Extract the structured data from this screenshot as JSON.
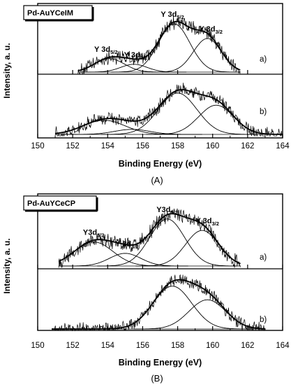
{
  "chart_data": [
    {
      "type": "line",
      "panel_caption": "(A)",
      "sample_label": "Pd-AuYCeIM",
      "xlabel": "Binding Energy (eV)",
      "ylabel": "Intensity, a. u.",
      "xlim": [
        150,
        164
      ],
      "x_ticks": [
        "150",
        "152",
        "154",
        "156",
        "158",
        "160",
        "162",
        "164"
      ],
      "x_tick_values": [
        150,
        152,
        154,
        156,
        158,
        160,
        162,
        164
      ],
      "subplots": [
        {
          "label": "a)",
          "x_range": [
            152.3,
            161.6
          ],
          "peaks": [
            {
              "name_main": "Y 3d",
              "name_sub": "5/2",
              "center": 154.1,
              "height": 0.24,
              "sigma": 0.85,
              "label_x": 153.9
            },
            {
              "name_main": "Y 3d",
              "name_sub": "3/2",
              "center": 155.5,
              "height": 0.14,
              "sigma": 0.75,
              "label_x": 155.6
            },
            {
              "name_main": "Y 3d",
              "name_sub": "5/2",
              "center": 157.8,
              "height": 0.86,
              "sigma": 0.9,
              "label_x": 157.7
            },
            {
              "name_main": "Y 3d",
              "name_sub": "3/2",
              "center": 159.7,
              "height": 0.6,
              "sigma": 0.8,
              "label_x": 159.9
            }
          ]
        },
        {
          "label": "b)",
          "x_range": [
            151.0,
            164.0
          ],
          "peaks": [
            {
              "center": 153.8,
              "height": 0.28,
              "sigma": 1.2
            },
            {
              "center": 155.4,
              "height": 0.1,
              "sigma": 1.0
            },
            {
              "center": 158.0,
              "height": 0.82,
              "sigma": 1.1
            },
            {
              "center": 160.2,
              "height": 0.58,
              "sigma": 1.0
            }
          ]
        }
      ]
    },
    {
      "type": "line",
      "panel_caption": "(B)",
      "sample_label": "Pd-AuYCeCP",
      "xlabel": "Binding Energy (eV)",
      "ylabel": "Intensity, a. u.",
      "xlim": [
        150,
        164
      ],
      "x_ticks": [
        "150",
        "152",
        "154",
        "156",
        "158",
        "160",
        "162",
        "164"
      ],
      "x_tick_values": [
        150,
        152,
        154,
        156,
        158,
        160,
        162,
        164
      ],
      "subplots": [
        {
          "label": "a)",
          "x_range": [
            151.2,
            161.6
          ],
          "peaks": [
            {
              "name_main": "Y3d",
              "name_sub": "5/2",
              "center": 153.2,
              "height": 0.42,
              "sigma": 1.1,
              "label_x": 153.2
            },
            {
              "name_main": "Y 3d",
              "name_sub": "3/2",
              "center": 155.0,
              "height": 0.22,
              "sigma": 0.9,
              "label_x": 155.1
            },
            {
              "name_main": "Y3d",
              "name_sub": "5/2",
              "center": 157.4,
              "height": 0.82,
              "sigma": 1.0,
              "label_x": 157.4
            },
            {
              "name_main": "Y 3d",
              "name_sub": "3/2",
              "center": 159.4,
              "height": 0.62,
              "sigma": 0.95,
              "label_x": 159.7
            }
          ]
        },
        {
          "label": "b)",
          "x_range": [
            150.8,
            163.0
          ],
          "peaks": [
            {
              "center": 157.7,
              "height": 0.85,
              "sigma": 1.1
            },
            {
              "center": 159.7,
              "height": 0.58,
              "sigma": 1.05
            }
          ]
        }
      ]
    }
  ]
}
